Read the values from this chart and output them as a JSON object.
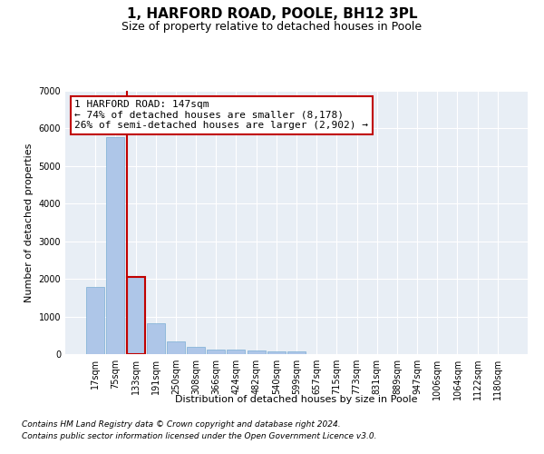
{
  "title": "1, HARFORD ROAD, POOLE, BH12 3PL",
  "subtitle": "Size of property relative to detached houses in Poole",
  "xlabel": "Distribution of detached houses by size in Poole",
  "ylabel": "Number of detached properties",
  "bar_labels": [
    "17sqm",
    "75sqm",
    "133sqm",
    "191sqm",
    "250sqm",
    "308sqm",
    "366sqm",
    "424sqm",
    "482sqm",
    "540sqm",
    "599sqm",
    "657sqm",
    "715sqm",
    "773sqm",
    "831sqm",
    "889sqm",
    "947sqm",
    "1006sqm",
    "1064sqm",
    "1122sqm",
    "1180sqm"
  ],
  "bar_values": [
    1780,
    5780,
    2060,
    820,
    340,
    190,
    130,
    110,
    90,
    75,
    70,
    0,
    0,
    0,
    0,
    0,
    0,
    0,
    0,
    0,
    0
  ],
  "bar_color": "#aec6e8",
  "bar_edge_color": "#7aadd4",
  "highlight_bar_index": 2,
  "highlight_color": "#c00000",
  "annotation_line1": "1 HARFORD ROAD: 147sqm",
  "annotation_line2": "← 74% of detached houses are smaller (8,178)",
  "annotation_line3": "26% of semi-detached houses are larger (2,902) →",
  "ylim": [
    0,
    7000
  ],
  "yticks": [
    0,
    1000,
    2000,
    3000,
    4000,
    5000,
    6000,
    7000
  ],
  "footnote1": "Contains HM Land Registry data © Crown copyright and database right 2024.",
  "footnote2": "Contains public sector information licensed under the Open Government Licence v3.0.",
  "bg_color": "#e8eef5",
  "grid_color": "#ffffff",
  "title_fontsize": 11,
  "subtitle_fontsize": 9,
  "axis_label_fontsize": 8,
  "tick_fontsize": 7,
  "annotation_fontsize": 8,
  "footnote_fontsize": 6.5
}
